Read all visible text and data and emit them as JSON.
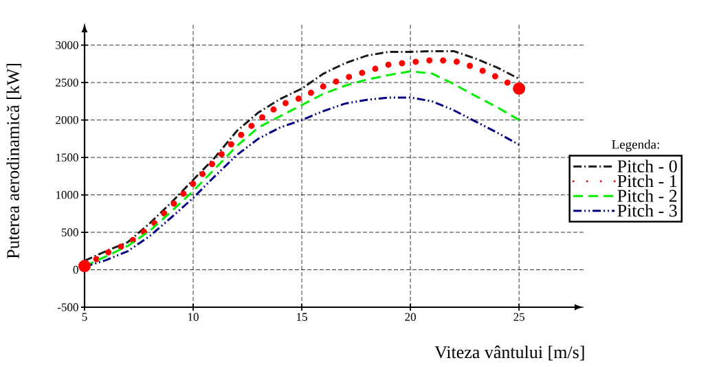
{
  "chart_data": {
    "type": "line",
    "xlabel": "Viteza vântului [m/s]",
    "ylabel": "Puterea aerodinamică [kW]",
    "legend_title": "Legenda:",
    "x": [
      5,
      6,
      7,
      8,
      9,
      10,
      11,
      12,
      13,
      14,
      15,
      16,
      17,
      18,
      19,
      20,
      21,
      22,
      23,
      24,
      25
    ],
    "series": [
      {
        "name": "Pitch - 0",
        "color": "#1a1a1a",
        "line_style": "dashdotted",
        "marker": "none",
        "values": [
          120,
          250,
          370,
          620,
          900,
          1200,
          1500,
          1850,
          2100,
          2280,
          2420,
          2620,
          2760,
          2860,
          2910,
          2910,
          2920,
          2920,
          2820,
          2700,
          2550
        ]
      },
      {
        "name": "Pitch - 1",
        "color": "#ff0000",
        "line_style": "dotted",
        "values": [
          50,
          220,
          350,
          560,
          850,
          1150,
          1450,
          1750,
          2000,
          2200,
          2300,
          2450,
          2560,
          2650,
          2740,
          2770,
          2800,
          2790,
          2700,
          2570,
          2420
        ]
      },
      {
        "name": "Pitch - 2",
        "color": "#00ee00",
        "line_style": "dashed",
        "marker": "none",
        "values": [
          50,
          180,
          320,
          520,
          780,
          1050,
          1350,
          1650,
          1900,
          2050,
          2200,
          2350,
          2460,
          2540,
          2600,
          2650,
          2620,
          2480,
          2320,
          2170,
          2000
        ]
      },
      {
        "name": "Pitch - 3",
        "color": "#000080",
        "line_style": "dashdotdotted",
        "marker": "none",
        "values": [
          40,
          130,
          250,
          450,
          700,
          960,
          1250,
          1530,
          1750,
          1900,
          2000,
          2120,
          2220,
          2270,
          2300,
          2300,
          2250,
          2130,
          1980,
          1830,
          1670
        ]
      }
    ],
    "xlim": [
      5,
      28
    ],
    "ylim": [
      -500,
      3300
    ],
    "xticks": [
      5,
      10,
      15,
      20,
      25
    ],
    "yticks": [
      -500,
      0,
      500,
      1000,
      1500,
      2000,
      2500,
      3000
    ],
    "grid": true,
    "legend": "right"
  }
}
